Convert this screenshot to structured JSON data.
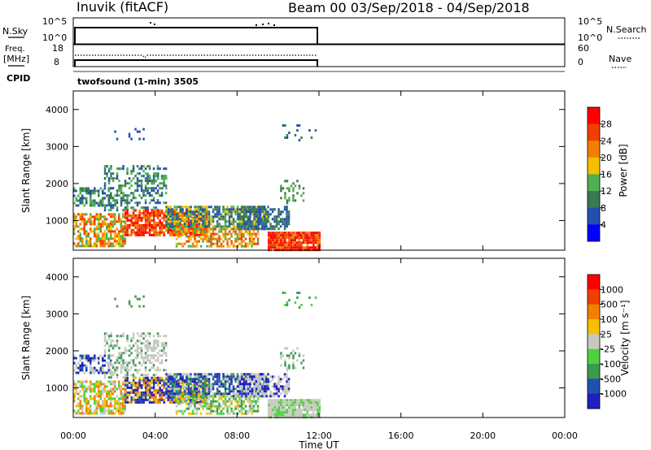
{
  "header": {
    "station": "Inuvik (fitACF)",
    "beam_range": "Beam 00  03/Sep/2018 - 04/Sep/2018"
  },
  "nsky_panel": {
    "left_label": "N.Sky",
    "right_label": "N.Search",
    "y_ticks_left": [
      "10^5",
      "10^0"
    ],
    "y_ticks_right": [
      "10^5",
      "10^0"
    ]
  },
  "freq_panel": {
    "left_label_1": "Freq.",
    "left_label_2": "[MHz]",
    "right_label": "Nave",
    "y_ticks_left": [
      "18",
      "8"
    ],
    "y_ticks_right": [
      "60",
      "0"
    ]
  },
  "cpid": {
    "label": "CPID",
    "program": "twofsound (1-min) 3505"
  },
  "colors": {
    "power_scale": [
      "#0000ff",
      "#2050b0",
      "#3a7a50",
      "#4fb050",
      "#f4c000",
      "#f08000",
      "#f04000",
      "#ff0000"
    ],
    "velocity_scale": [
      "#ff0000",
      "#f04000",
      "#f08000",
      "#f4c000",
      "#c8c8c0",
      "#4fd040",
      "#3a9a50",
      "#2050b0",
      "#2020c0"
    ]
  },
  "chart_data": [
    {
      "type": "heatmap",
      "name": "power",
      "xlabel": "",
      "ylabel": "Slant Range [km]",
      "ylim": [
        200,
        4500
      ],
      "xlim": [
        "00:00",
        "24:00"
      ],
      "yticks": [
        "1000",
        "2000",
        "3000",
        "4000"
      ],
      "colorbar_label": "Power [dB]",
      "colorbar_ticks": [
        "4",
        "8",
        "12",
        "16",
        "20",
        "24",
        "28"
      ]
    },
    {
      "type": "heatmap",
      "name": "velocity",
      "xlabel": "Time UT",
      "ylabel": "Slant Range [km]",
      "ylim": [
        200,
        4500
      ],
      "xlim": [
        "00:00",
        "24:00"
      ],
      "xticks": [
        "00:00",
        "04:00",
        "08:00",
        "12:00",
        "16:00",
        "20:00",
        "00:00"
      ],
      "yticks": [
        "1000",
        "2000",
        "3000",
        "4000"
      ],
      "colorbar_label": "Velocity [m s⁻¹]",
      "colorbar_ticks": [
        "1000",
        "500",
        "100",
        "25",
        "-25",
        "-100",
        "-500",
        "-1000"
      ]
    }
  ]
}
